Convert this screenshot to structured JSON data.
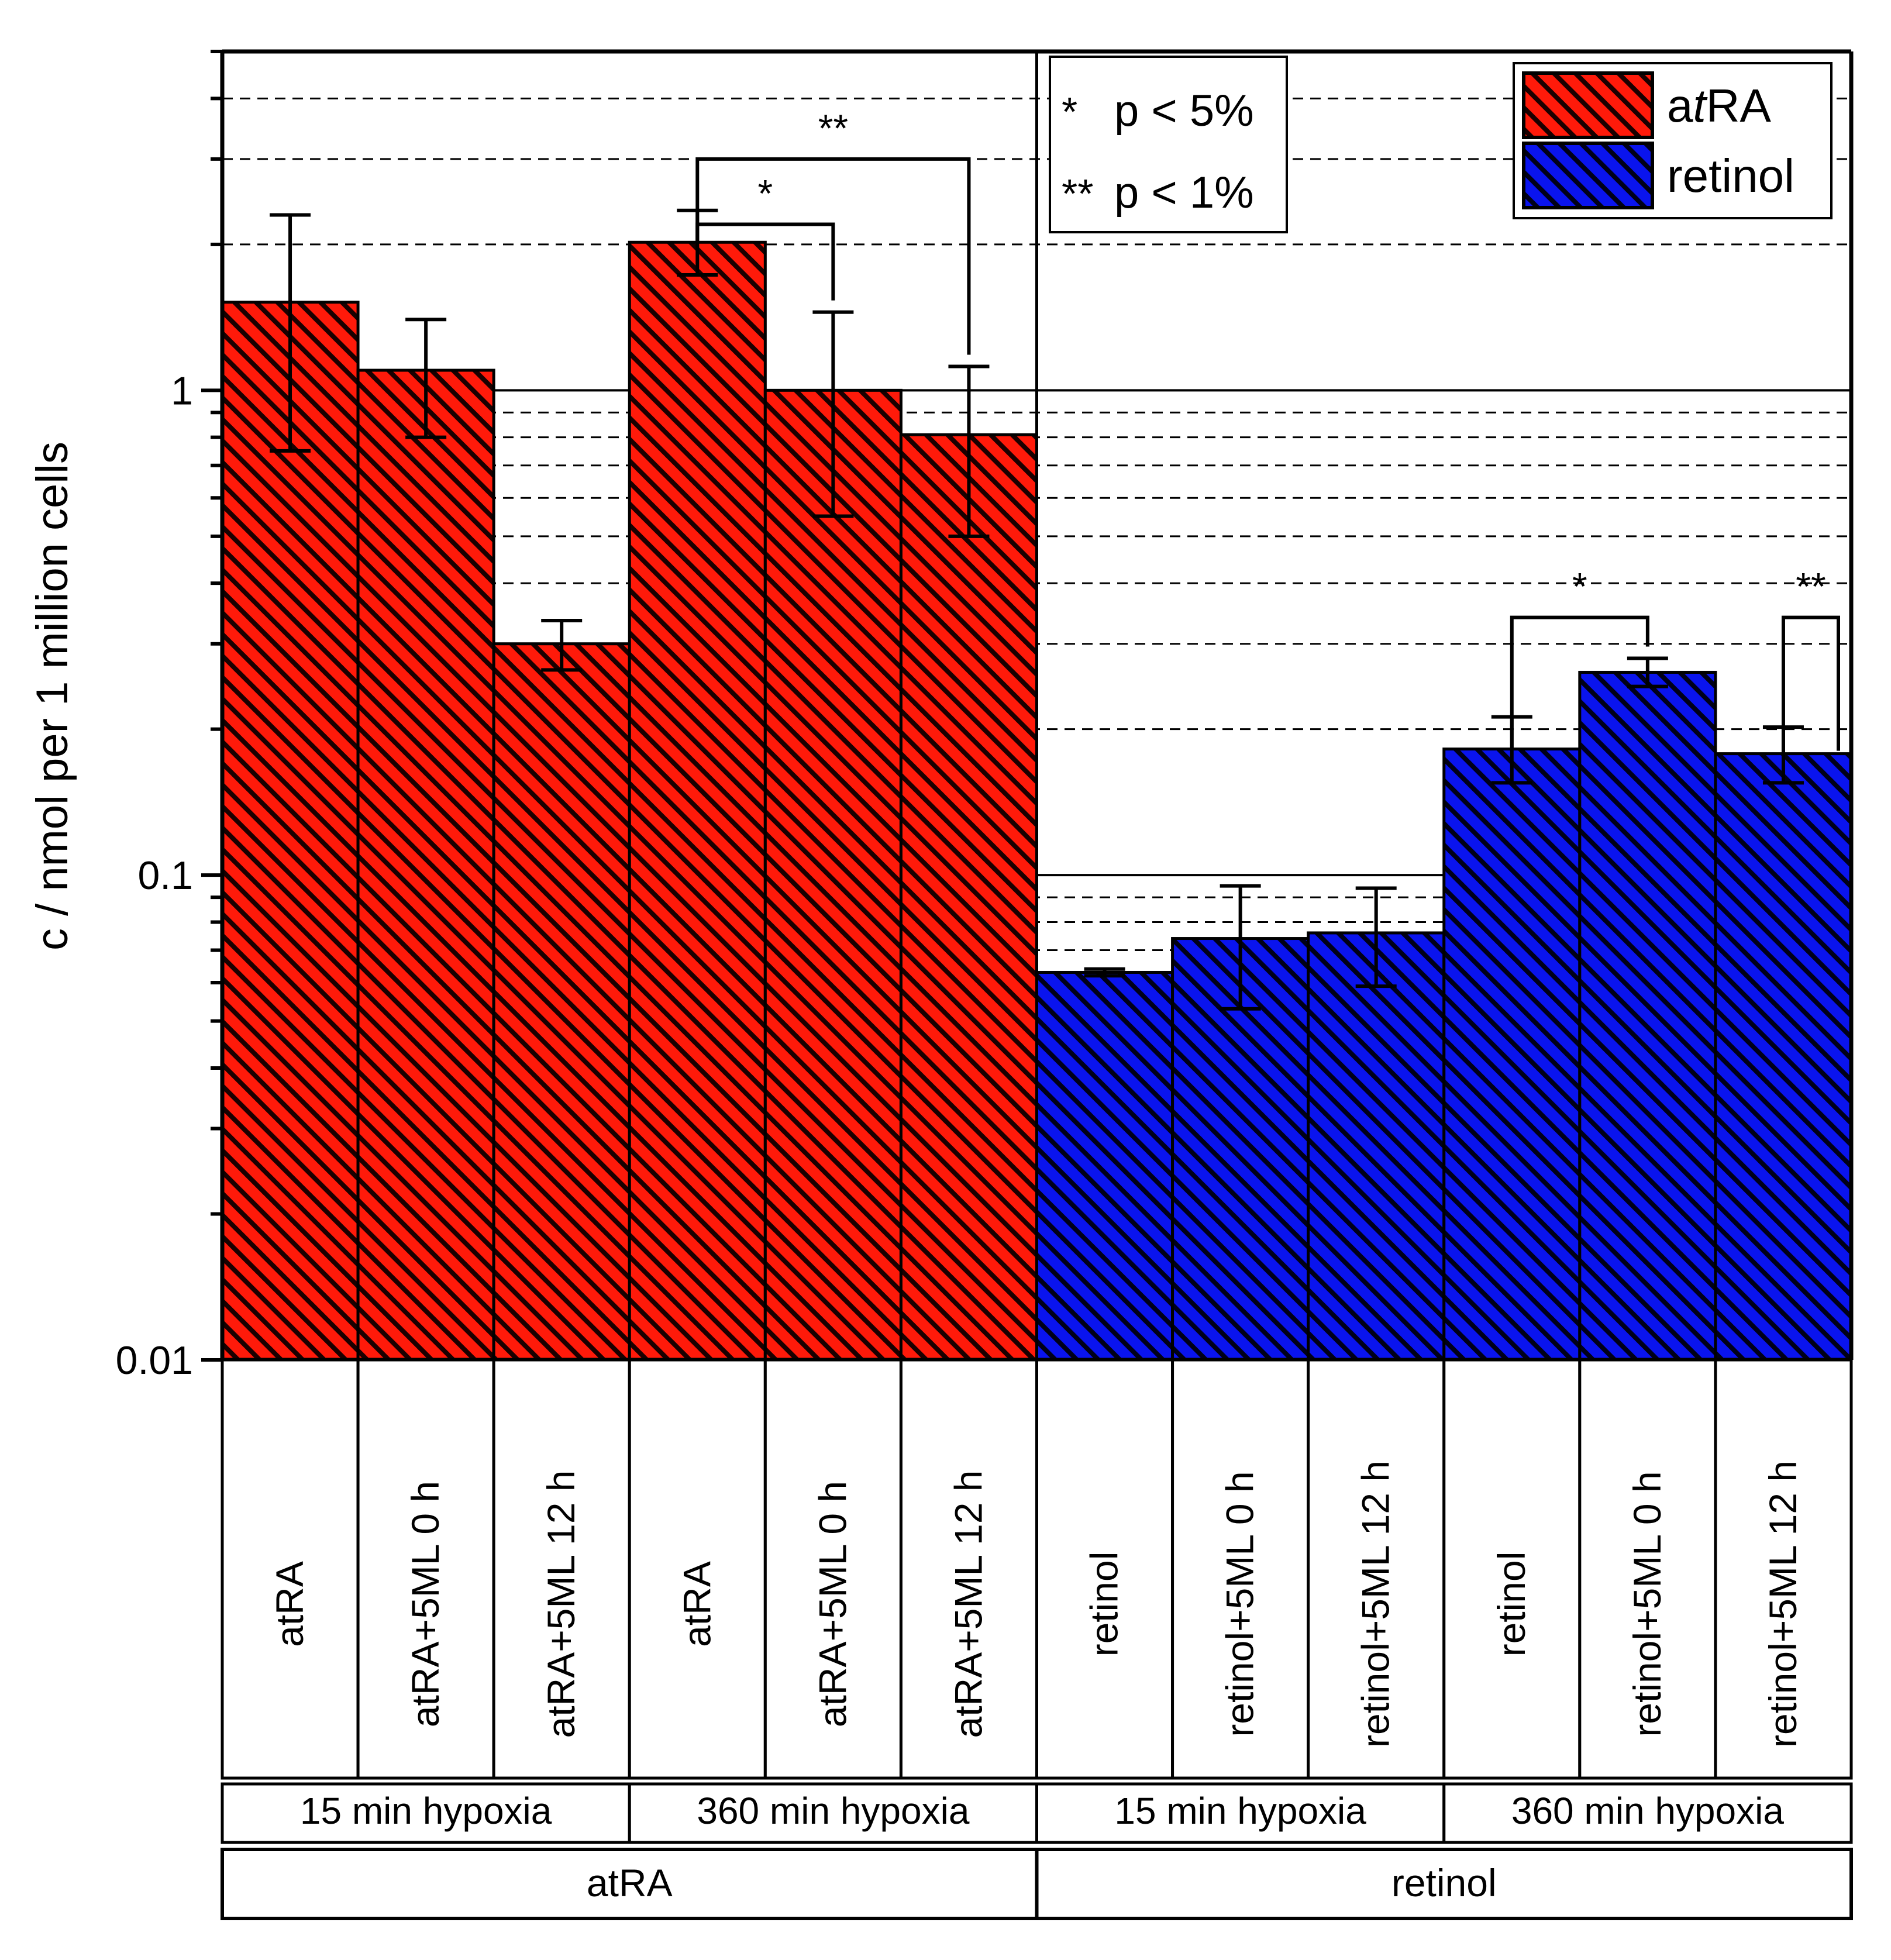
{
  "chart_data": {
    "type": "bar",
    "scale": "log",
    "ylabel": "c / nmol per 1 million cells",
    "ylim": [
      0.01,
      5
    ],
    "yticks": [
      {
        "value": 0.01,
        "label": "0.01"
      },
      {
        "value": 0.1,
        "label": "0.1"
      },
      {
        "value": 1,
        "label": "1"
      }
    ],
    "colors": {
      "atRA": "#ff1a0a",
      "retinol": "#0a14ee"
    },
    "bars": [
      {
        "label": "atRA",
        "series": "atRA",
        "value": 1.52,
        "err_low": 0.75,
        "err_high": 2.3
      },
      {
        "label": "atRA+5ML 0 h",
        "series": "atRA",
        "value": 1.1,
        "err_low": 0.8,
        "err_high": 1.4
      },
      {
        "label": "atRA+5ML 12 h",
        "series": "atRA",
        "value": 0.3,
        "err_low": 0.265,
        "err_high": 0.335
      },
      {
        "label": "atRA",
        "series": "atRA",
        "value": 2.02,
        "err_low": 1.73,
        "err_high": 2.35
      },
      {
        "label": "atRA+5ML 0 h",
        "series": "atRA",
        "value": 1.0,
        "err_low": 0.55,
        "err_high": 1.45
      },
      {
        "label": "atRA+5ML 12 h",
        "series": "atRA",
        "value": 0.81,
        "err_low": 0.5,
        "err_high": 1.12
      },
      {
        "label": "retinol",
        "series": "retinol",
        "value": 0.063,
        "err_low": 0.062,
        "err_high": 0.064
      },
      {
        "label": "retinol+5ML 0 h",
        "series": "retinol",
        "value": 0.074,
        "err_low": 0.053,
        "err_high": 0.095
      },
      {
        "label": "retinol+5ML 12 h",
        "series": "retinol",
        "value": 0.076,
        "err_low": 0.059,
        "err_high": 0.094
      },
      {
        "label": "retinol",
        "series": "retinol",
        "value": 0.182,
        "err_low": 0.155,
        "err_high": 0.212
      },
      {
        "label": "retinol+5ML 0 h",
        "series": "retinol",
        "value": 0.262,
        "err_low": 0.245,
        "err_high": 0.28
      },
      {
        "label": "retinol+5ML 12 h",
        "series": "retinol",
        "value": 0.178,
        "err_low": 0.155,
        "err_high": 0.202
      }
    ],
    "hypoxia_groups": [
      {
        "label": "15 min hypoxia",
        "span": [
          0,
          2
        ]
      },
      {
        "label": "360 min hypoxia",
        "span": [
          3,
          5
        ]
      },
      {
        "label": "15 min hypoxia",
        "span": [
          6,
          8
        ]
      },
      {
        "label": "360 min hypoxia",
        "span": [
          9,
          11
        ]
      }
    ],
    "compound_groups": [
      {
        "label": "atRA",
        "span": [
          0,
          5
        ]
      },
      {
        "label": "retinol",
        "span": [
          6,
          11
        ]
      }
    ],
    "significance": [
      {
        "from": 3,
        "to": 5,
        "label": "**",
        "y": 3.0
      },
      {
        "from": 3,
        "to": 4,
        "label": "*",
        "y": 2.2
      },
      {
        "from": 9,
        "to": 10,
        "label": "*",
        "y": 0.34
      },
      {
        "from": 11,
        "to": 12,
        "label": "**",
        "y": 0.34
      }
    ],
    "p_legend": [
      {
        "stars": "*",
        "text": "p < 5%"
      },
      {
        "stars": "**",
        "text": "p < 1%"
      }
    ],
    "legend": [
      {
        "series": "atRA",
        "pre": "a",
        "italic": "t",
        "post": "RA"
      },
      {
        "series": "retinol",
        "pre": "retinol",
        "italic": "",
        "post": ""
      }
    ]
  }
}
